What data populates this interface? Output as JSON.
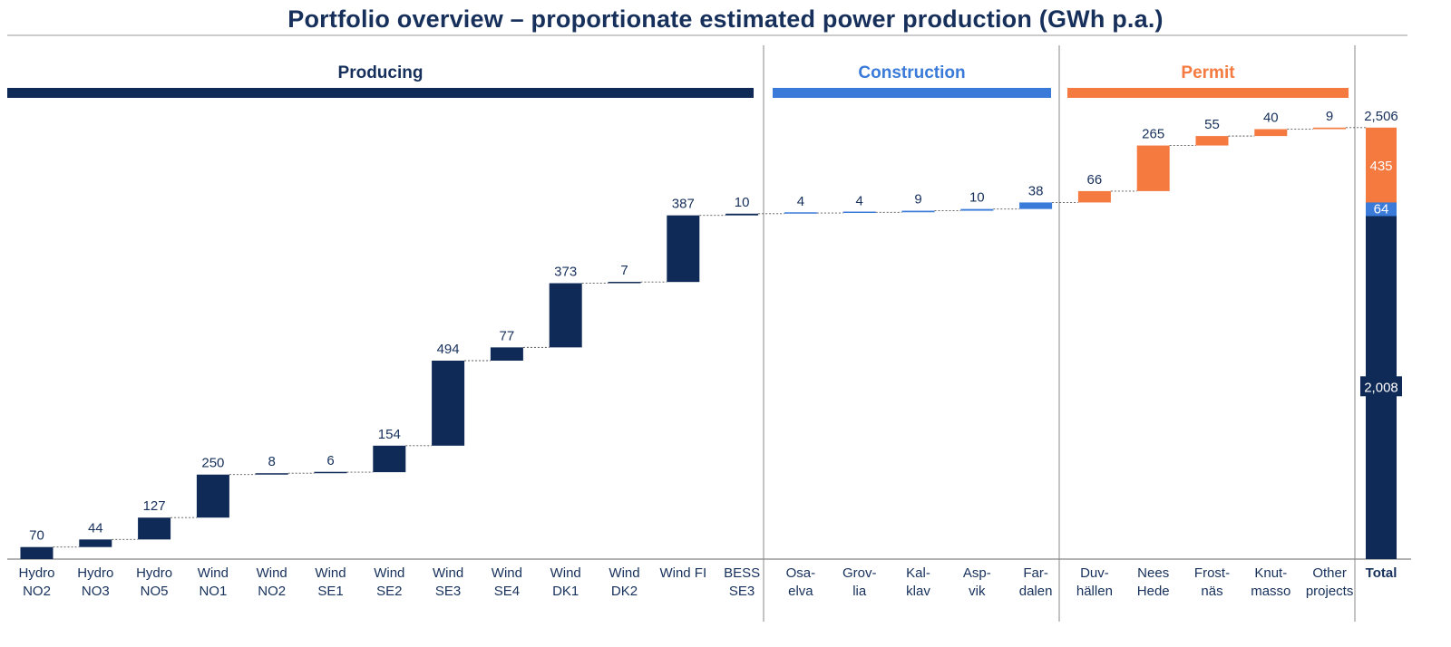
{
  "title": "Portfolio overview – proportionate estimated power production (GWh p.a.)",
  "colors": {
    "producing": "#0f2a57",
    "construction": "#3a7ad8",
    "permit": "#f47a40",
    "text": "#16305b",
    "divider": "#888888"
  },
  "chart_data": {
    "type": "bar",
    "subtype": "waterfall",
    "title": "Portfolio overview – proportionate estimated power production (GWh p.a.)",
    "ylim": [
      0,
      2506
    ],
    "grid": false,
    "legend": "none",
    "groups": [
      {
        "name": "Producing",
        "color_key": "producing",
        "items": [
          {
            "label": [
              "Hydro",
              "NO2"
            ],
            "value": 70
          },
          {
            "label": [
              "Hydro",
              "NO3"
            ],
            "value": 44
          },
          {
            "label": [
              "Hydro",
              "NO5"
            ],
            "value": 127
          },
          {
            "label": [
              "Wind",
              "NO1"
            ],
            "value": 250
          },
          {
            "label": [
              "Wind",
              "NO2"
            ],
            "value": 8
          },
          {
            "label": [
              "Wind",
              "SE1"
            ],
            "value": 6
          },
          {
            "label": [
              "Wind",
              "SE2"
            ],
            "value": 154
          },
          {
            "label": [
              "Wind",
              "SE3"
            ],
            "value": 494
          },
          {
            "label": [
              "Wind",
              "SE4"
            ],
            "value": 77
          },
          {
            "label": [
              "Wind",
              "DK1"
            ],
            "value": 373
          },
          {
            "label": [
              "Wind",
              "DK2"
            ],
            "value": 7
          },
          {
            "label": [
              "Wind FI"
            ],
            "value": 387
          },
          {
            "label": [
              "BESS",
              "SE3"
            ],
            "value": 10
          }
        ]
      },
      {
        "name": "Construction",
        "color_key": "construction",
        "items": [
          {
            "label": [
              "Osa-",
              "elva"
            ],
            "value": 4
          },
          {
            "label": [
              "Grov-",
              "lia"
            ],
            "value": 4
          },
          {
            "label": [
              "Kal-",
              "klav"
            ],
            "value": 9
          },
          {
            "label": [
              "Asp-",
              "vik"
            ],
            "value": 10
          },
          {
            "label": [
              "Far-",
              "dalen"
            ],
            "value": 38
          }
        ]
      },
      {
        "name": "Permit",
        "color_key": "permit",
        "items": [
          {
            "label": [
              "Duv-",
              "hällen"
            ],
            "value": 66
          },
          {
            "label": [
              "Nees",
              "Hede"
            ],
            "value": 265
          },
          {
            "label": [
              "Frost-",
              "näs"
            ],
            "value": 55
          },
          {
            "label": [
              "Knut-",
              "masso"
            ],
            "value": 40
          },
          {
            "label": [
              "Other",
              "projects"
            ],
            "value": 9
          }
        ]
      }
    ],
    "total": {
      "label": "Total",
      "value_label": "2,506",
      "segments": [
        {
          "value": 2008,
          "label": "2,008",
          "color_key": "producing"
        },
        {
          "value": 64,
          "label": "64",
          "color_key": "construction"
        },
        {
          "value": 435,
          "label": "435",
          "color_key": "permit"
        }
      ]
    }
  }
}
